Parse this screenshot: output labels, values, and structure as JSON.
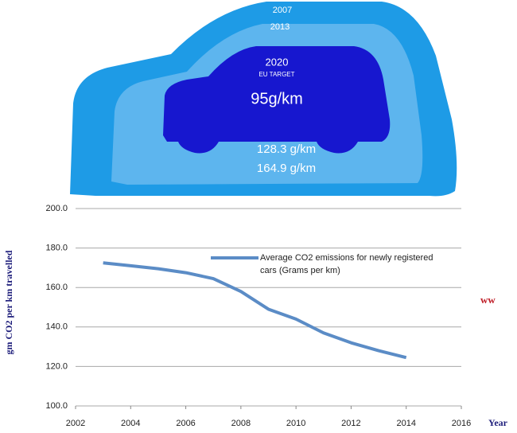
{
  "infographic": {
    "labels": [
      "2007",
      "2013",
      "2020",
      "EU TARGET",
      "95g/km",
      "128.3 g/km",
      "164.9 g/km"
    ]
  },
  "chart_data": {
    "type": "line",
    "x": [
      2003,
      2004,
      2005,
      2006,
      2007,
      2008,
      2009,
      2010,
      2011,
      2012,
      2013,
      2014
    ],
    "series": [
      {
        "name": "Average CO2 emissions for newly registered cars (Grams per km)",
        "color": "#5b8cc6",
        "values": [
          172.5,
          171,
          169.5,
          167.5,
          164.5,
          158,
          149,
          144,
          137,
          132,
          128,
          124.5
        ]
      }
    ],
    "xlim": [
      2002,
      2016
    ],
    "xticks": [
      2002,
      2004,
      2006,
      2008,
      2010,
      2012,
      2014,
      2016
    ],
    "ylim": [
      100,
      200
    ],
    "yticks": [
      {
        "value": 100,
        "label": "100.0"
      },
      {
        "value": 120,
        "label": "120.0"
      },
      {
        "value": 140,
        "label": "140.0"
      },
      {
        "value": 160,
        "label": "160.0"
      },
      {
        "value": 180,
        "label": "180.0"
      },
      {
        "value": 200,
        "label": "200.0"
      }
    ],
    "y_label": "gm CO2 per km travelled",
    "x_label": "Year",
    "annotation": "ww",
    "grid": true
  }
}
